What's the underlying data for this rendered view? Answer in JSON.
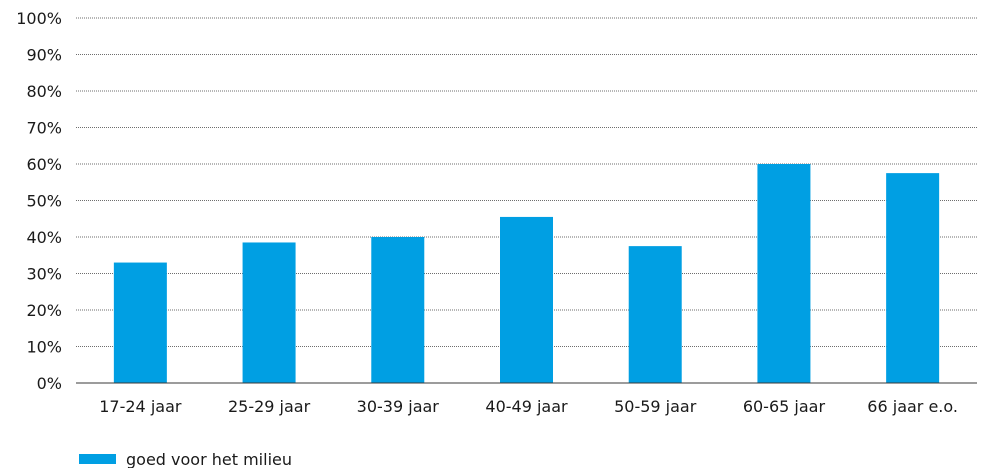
{
  "chart_data": {
    "type": "bar",
    "categories": [
      "17-24 jaar",
      "25-29 jaar",
      "30-39 jaar",
      "40-49 jaar",
      "50-59 jaar",
      "60-65 jaar",
      "66 jaar e.o."
    ],
    "series": [
      {
        "name": "goed voor het milieu",
        "values": [
          33,
          38.5,
          40,
          45.5,
          37.5,
          60,
          57.5
        ]
      }
    ],
    "ylim": [
      0,
      100
    ],
    "yticks": [
      "0%",
      "10%",
      "20%",
      "30%",
      "40%",
      "50%",
      "60%",
      "70%",
      "80%",
      "90%",
      "100%"
    ],
    "grid": true,
    "legend_position": "bottom-left",
    "bar_color": "#009fe3",
    "grid_color": "#6e6e6e"
  }
}
